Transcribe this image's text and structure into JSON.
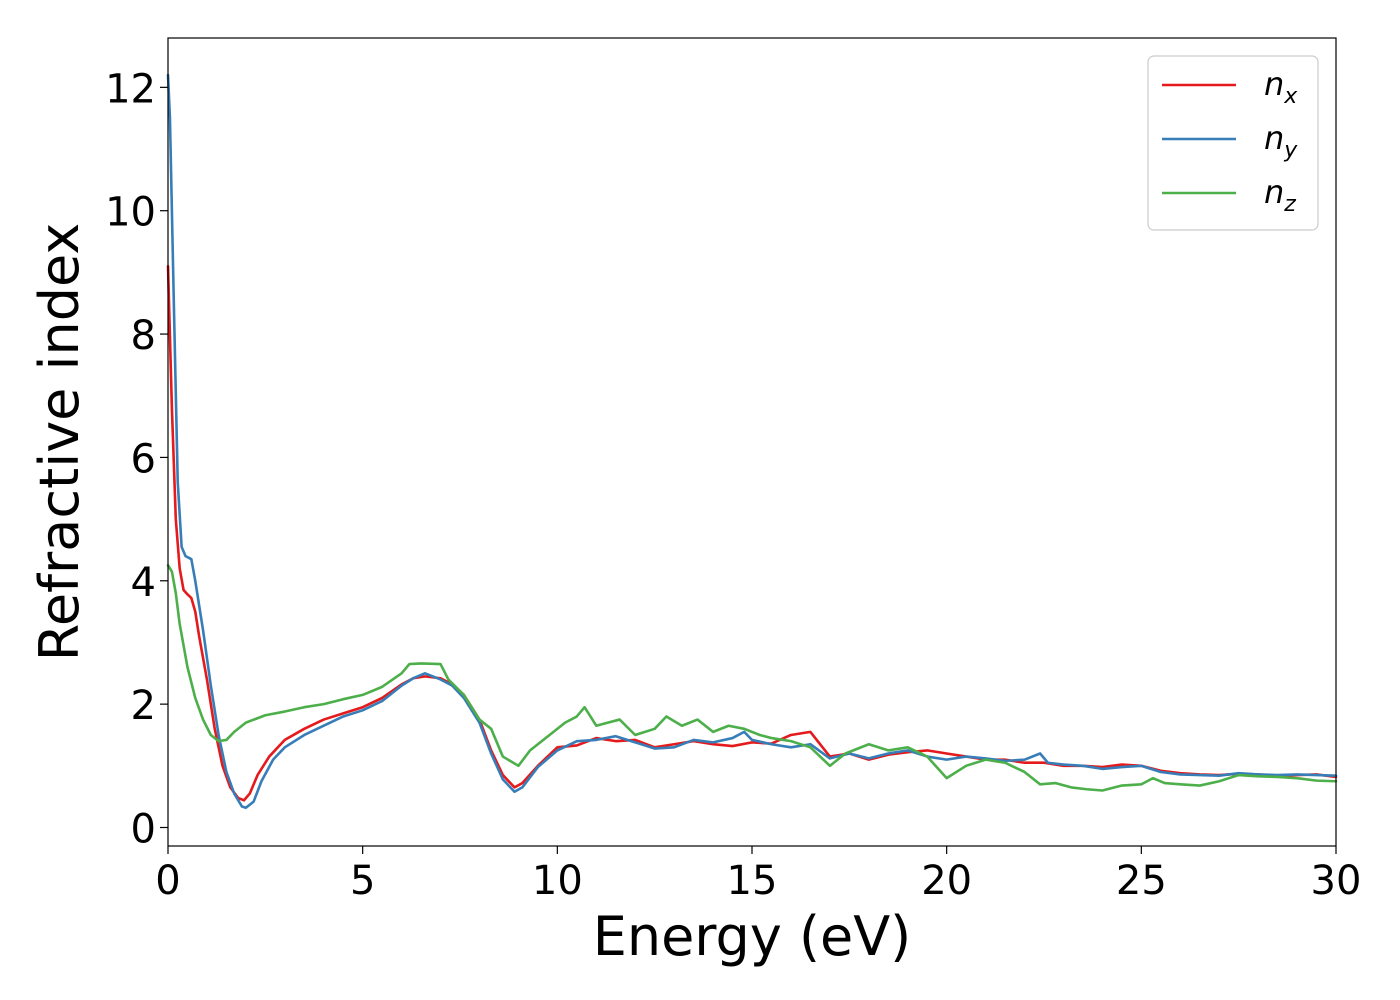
{
  "chart_data": {
    "type": "line",
    "title": "",
    "xlabel": "Energy (eV)",
    "ylabel": "Refractive index",
    "xlim": [
      0,
      30
    ],
    "ylim": [
      -0.3,
      12.8
    ],
    "xticks": [
      0,
      5,
      10,
      15,
      20,
      25,
      30
    ],
    "yticks": [
      0,
      2,
      4,
      6,
      8,
      10,
      12
    ],
    "grid": false,
    "legend_position": "top-right",
    "series": [
      {
        "name": "n_x",
        "name_main": "n",
        "name_sub": "x",
        "color": "#e41a1c",
        "points": [
          [
            0,
            9.1
          ],
          [
            0.1,
            6.8
          ],
          [
            0.2,
            5.0
          ],
          [
            0.3,
            4.2
          ],
          [
            0.4,
            3.85
          ],
          [
            0.5,
            3.78
          ],
          [
            0.6,
            3.72
          ],
          [
            0.7,
            3.5
          ],
          [
            0.8,
            3.1
          ],
          [
            1.0,
            2.4
          ],
          [
            1.2,
            1.6
          ],
          [
            1.4,
            1.0
          ],
          [
            1.6,
            0.65
          ],
          [
            1.8,
            0.48
          ],
          [
            1.95,
            0.44
          ],
          [
            2.1,
            0.55
          ],
          [
            2.3,
            0.85
          ],
          [
            2.6,
            1.15
          ],
          [
            3.0,
            1.42
          ],
          [
            3.5,
            1.6
          ],
          [
            4.0,
            1.75
          ],
          [
            4.5,
            1.85
          ],
          [
            5.0,
            1.95
          ],
          [
            5.5,
            2.1
          ],
          [
            6.0,
            2.32
          ],
          [
            6.3,
            2.42
          ],
          [
            6.6,
            2.45
          ],
          [
            7.0,
            2.42
          ],
          [
            7.3,
            2.32
          ],
          [
            7.6,
            2.15
          ],
          [
            8.0,
            1.75
          ],
          [
            8.3,
            1.25
          ],
          [
            8.6,
            0.85
          ],
          [
            8.9,
            0.65
          ],
          [
            9.1,
            0.72
          ],
          [
            9.5,
            1.0
          ],
          [
            10.0,
            1.3
          ],
          [
            10.5,
            1.33
          ],
          [
            11.0,
            1.45
          ],
          [
            11.5,
            1.4
          ],
          [
            12.0,
            1.42
          ],
          [
            12.5,
            1.3
          ],
          [
            13.0,
            1.35
          ],
          [
            13.5,
            1.4
          ],
          [
            14.0,
            1.35
          ],
          [
            14.5,
            1.32
          ],
          [
            15.0,
            1.38
          ],
          [
            15.5,
            1.36
          ],
          [
            16.0,
            1.5
          ],
          [
            16.5,
            1.55
          ],
          [
            17.0,
            1.15
          ],
          [
            17.5,
            1.2
          ],
          [
            18.0,
            1.1
          ],
          [
            18.5,
            1.18
          ],
          [
            19.0,
            1.22
          ],
          [
            19.5,
            1.25
          ],
          [
            20.0,
            1.2
          ],
          [
            20.5,
            1.15
          ],
          [
            21.0,
            1.1
          ],
          [
            21.5,
            1.1
          ],
          [
            22.0,
            1.05
          ],
          [
            22.5,
            1.05
          ],
          [
            23.0,
            1.0
          ],
          [
            23.5,
            1.0
          ],
          [
            24.0,
            0.98
          ],
          [
            24.5,
            1.02
          ],
          [
            25.0,
            1.0
          ],
          [
            25.5,
            0.92
          ],
          [
            26.0,
            0.88
          ],
          [
            26.5,
            0.86
          ],
          [
            27.0,
            0.85
          ],
          [
            27.5,
            0.87
          ],
          [
            28.0,
            0.86
          ],
          [
            28.5,
            0.84
          ],
          [
            29.0,
            0.85
          ],
          [
            29.5,
            0.86
          ],
          [
            30.0,
            0.82
          ]
        ]
      },
      {
        "name": "n_y",
        "name_main": "n",
        "name_sub": "y",
        "color": "#377eb8",
        "points": [
          [
            0,
            12.2
          ],
          [
            0.05,
            11.5
          ],
          [
            0.15,
            8.5
          ],
          [
            0.25,
            5.6
          ],
          [
            0.35,
            4.55
          ],
          [
            0.45,
            4.4
          ],
          [
            0.6,
            4.35
          ],
          [
            0.7,
            4.0
          ],
          [
            0.9,
            3.2
          ],
          [
            1.1,
            2.3
          ],
          [
            1.3,
            1.5
          ],
          [
            1.5,
            0.9
          ],
          [
            1.7,
            0.55
          ],
          [
            1.9,
            0.34
          ],
          [
            2.0,
            0.32
          ],
          [
            2.2,
            0.42
          ],
          [
            2.4,
            0.75
          ],
          [
            2.7,
            1.1
          ],
          [
            3.0,
            1.3
          ],
          [
            3.5,
            1.5
          ],
          [
            4.0,
            1.65
          ],
          [
            4.5,
            1.8
          ],
          [
            5.0,
            1.9
          ],
          [
            5.5,
            2.05
          ],
          [
            6.0,
            2.3
          ],
          [
            6.3,
            2.42
          ],
          [
            6.6,
            2.5
          ],
          [
            7.0,
            2.4
          ],
          [
            7.3,
            2.3
          ],
          [
            7.6,
            2.1
          ],
          [
            8.0,
            1.7
          ],
          [
            8.3,
            1.2
          ],
          [
            8.6,
            0.78
          ],
          [
            8.9,
            0.58
          ],
          [
            9.1,
            0.65
          ],
          [
            9.5,
            0.98
          ],
          [
            10.0,
            1.25
          ],
          [
            10.5,
            1.4
          ],
          [
            11.0,
            1.42
          ],
          [
            11.5,
            1.48
          ],
          [
            12.0,
            1.38
          ],
          [
            12.5,
            1.28
          ],
          [
            13.0,
            1.3
          ],
          [
            13.5,
            1.42
          ],
          [
            14.0,
            1.38
          ],
          [
            14.5,
            1.45
          ],
          [
            14.8,
            1.55
          ],
          [
            15.0,
            1.42
          ],
          [
            15.5,
            1.35
          ],
          [
            16.0,
            1.3
          ],
          [
            16.5,
            1.35
          ],
          [
            17.0,
            1.12
          ],
          [
            17.5,
            1.2
          ],
          [
            18.0,
            1.12
          ],
          [
            18.5,
            1.2
          ],
          [
            19.0,
            1.25
          ],
          [
            19.5,
            1.15
          ],
          [
            20.0,
            1.1
          ],
          [
            20.5,
            1.15
          ],
          [
            21.0,
            1.12
          ],
          [
            21.5,
            1.08
          ],
          [
            22.0,
            1.1
          ],
          [
            22.4,
            1.2
          ],
          [
            22.6,
            1.05
          ],
          [
            23.0,
            1.02
          ],
          [
            23.5,
            1.0
          ],
          [
            24.0,
            0.95
          ],
          [
            24.5,
            0.98
          ],
          [
            25.0,
            1.0
          ],
          [
            25.5,
            0.9
          ],
          [
            26.0,
            0.86
          ],
          [
            26.5,
            0.85
          ],
          [
            27.0,
            0.84
          ],
          [
            27.5,
            0.88
          ],
          [
            28.0,
            0.86
          ],
          [
            28.5,
            0.85
          ],
          [
            29.0,
            0.86
          ],
          [
            29.5,
            0.85
          ],
          [
            30.0,
            0.84
          ]
        ]
      },
      {
        "name": "n_z",
        "name_main": "n",
        "name_sub": "z",
        "color": "#4daf4a",
        "points": [
          [
            0,
            4.25
          ],
          [
            0.1,
            4.15
          ],
          [
            0.2,
            3.8
          ],
          [
            0.3,
            3.3
          ],
          [
            0.5,
            2.6
          ],
          [
            0.7,
            2.1
          ],
          [
            0.9,
            1.75
          ],
          [
            1.1,
            1.5
          ],
          [
            1.3,
            1.4
          ],
          [
            1.5,
            1.42
          ],
          [
            1.7,
            1.55
          ],
          [
            2.0,
            1.7
          ],
          [
            2.5,
            1.82
          ],
          [
            3.0,
            1.88
          ],
          [
            3.5,
            1.95
          ],
          [
            4.0,
            2.0
          ],
          [
            4.5,
            2.08
          ],
          [
            5.0,
            2.15
          ],
          [
            5.5,
            2.28
          ],
          [
            6.0,
            2.5
          ],
          [
            6.2,
            2.65
          ],
          [
            6.5,
            2.66
          ],
          [
            7.0,
            2.65
          ],
          [
            7.2,
            2.4
          ],
          [
            7.6,
            2.15
          ],
          [
            8.0,
            1.75
          ],
          [
            8.3,
            1.6
          ],
          [
            8.6,
            1.15
          ],
          [
            9.0,
            1.0
          ],
          [
            9.3,
            1.25
          ],
          [
            9.8,
            1.5
          ],
          [
            10.2,
            1.7
          ],
          [
            10.5,
            1.8
          ],
          [
            10.7,
            1.95
          ],
          [
            11.0,
            1.65
          ],
          [
            11.3,
            1.7
          ],
          [
            11.6,
            1.75
          ],
          [
            12.0,
            1.5
          ],
          [
            12.5,
            1.6
          ],
          [
            12.8,
            1.8
          ],
          [
            13.2,
            1.65
          ],
          [
            13.6,
            1.75
          ],
          [
            14.0,
            1.55
          ],
          [
            14.4,
            1.65
          ],
          [
            14.8,
            1.6
          ],
          [
            15.2,
            1.5
          ],
          [
            15.5,
            1.45
          ],
          [
            16.0,
            1.4
          ],
          [
            16.5,
            1.3
          ],
          [
            17.0,
            1.0
          ],
          [
            17.4,
            1.2
          ],
          [
            18.0,
            1.35
          ],
          [
            18.5,
            1.25
          ],
          [
            19.0,
            1.3
          ],
          [
            19.5,
            1.15
          ],
          [
            20.0,
            0.8
          ],
          [
            20.5,
            1.0
          ],
          [
            21.0,
            1.1
          ],
          [
            21.5,
            1.05
          ],
          [
            22.0,
            0.9
          ],
          [
            22.4,
            0.7
          ],
          [
            22.8,
            0.72
          ],
          [
            23.2,
            0.65
          ],
          [
            23.6,
            0.62
          ],
          [
            24.0,
            0.6
          ],
          [
            24.5,
            0.68
          ],
          [
            25.0,
            0.7
          ],
          [
            25.3,
            0.8
          ],
          [
            25.6,
            0.72
          ],
          [
            26.0,
            0.7
          ],
          [
            26.5,
            0.68
          ],
          [
            27.0,
            0.75
          ],
          [
            27.5,
            0.85
          ],
          [
            28.0,
            0.83
          ],
          [
            28.5,
            0.82
          ],
          [
            29.0,
            0.8
          ],
          [
            29.5,
            0.76
          ],
          [
            30.0,
            0.75
          ]
        ]
      }
    ]
  }
}
